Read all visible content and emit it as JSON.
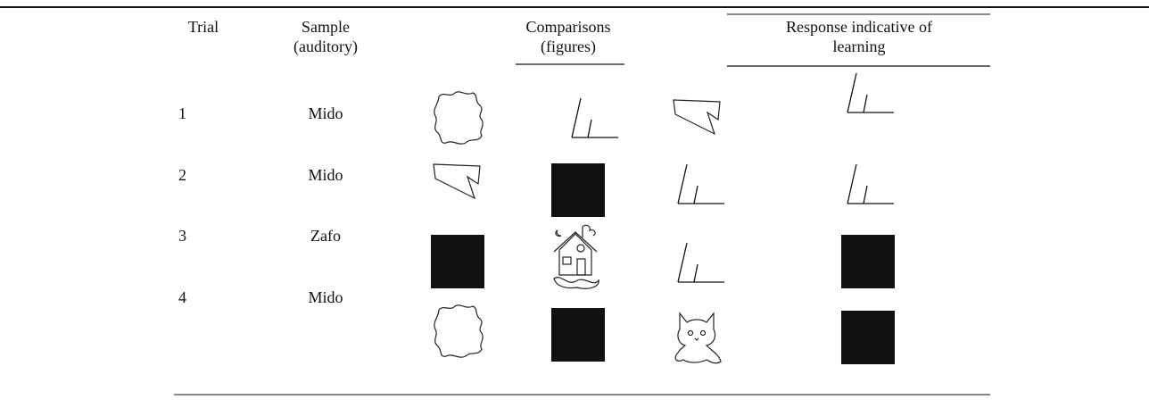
{
  "table": {
    "header": [
      [
        "Trial"
      ],
      [
        "Sample",
        "(auditory)"
      ],
      [
        "Comparisons",
        "(figures)"
      ],
      [
        "Response indicative of",
        "learning"
      ]
    ],
    "rows": [
      [
        "1",
        "Mido"
      ],
      [
        "2",
        "Mido"
      ],
      [
        "3",
        "Zafo"
      ],
      [
        "4",
        "Mido"
      ]
    ]
  }
}
